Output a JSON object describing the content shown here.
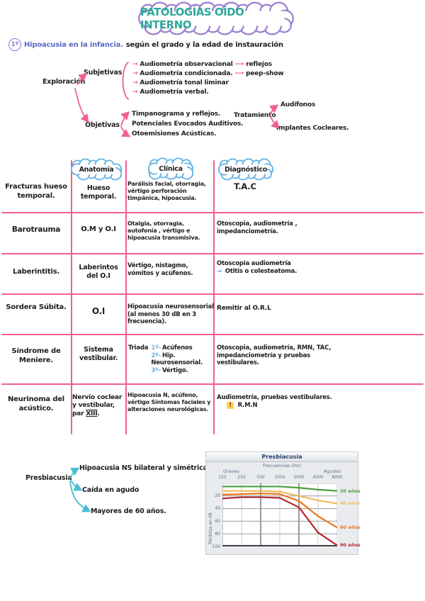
{
  "page_title": "PATOLOGÍAS OÍDO INTERNO",
  "colors": {
    "title_teal": "#2fa89b",
    "cloud_purple": "#9b7ed0",
    "cloud_blue": "#5fb0e5",
    "table_pink": "#f25f8d",
    "heading_blue": "#5b67c7",
    "cyan_arrow": "#49bdd3",
    "warning_yellow": "#f8d44c"
  },
  "section1": {
    "number": "1º",
    "heading_blue": "Hipoacusia en la infancia.",
    "heading_black": "según el grado y la edad de instauración",
    "exploracion_label": "Exploración",
    "subjetivas_label": "Subjetivas",
    "subjetivas_items": [
      {
        "text": "Audiometría observacional",
        "target": "reflejos"
      },
      {
        "text": "Audiometría condicionada.",
        "target": "peep-show"
      },
      {
        "text": "Audiometría tonal liminar",
        "target": ""
      },
      {
        "text": "Audiometría verbal.",
        "target": ""
      }
    ],
    "objetivas_label": "Objetivas",
    "objetivas_items": [
      "Timpanograma y reflejos.",
      "Potenciales Evocados Auditivos.",
      "Otoemisiones Acústicas."
    ],
    "tratamiento_label": "Tratamiento",
    "tratamiento_items": [
      "Audífonos",
      "Implantes Cocleares."
    ]
  },
  "table": {
    "headers": [
      "Anatomía",
      "Clínica",
      "Diagnóstico"
    ],
    "rows": [
      {
        "name": "Fracturas hueso temporal.",
        "anatomia": "Hueso temporal.",
        "clinica": "Parálisis facial, otorragia, vértigo perforación timpánica, hipoacusia.",
        "diagnostico": "T.A.C"
      },
      {
        "name": "Barotrauma",
        "anatomia": "O.M y O.I",
        "clinica": "Otalgia, otorragia, autofonía , vértigo e hipoacusia transmisiva.",
        "diagnostico": "Otoscopia, audiometría , impedanciometría."
      },
      {
        "name": "Laberintitis.",
        "anatomia": "Laberintos del O.I",
        "clinica": "Vértigo, nistagmo, vómitos y acúfenos.",
        "diagnostico": "Otoscopia audiometría",
        "diagnostico_arrow_note": "Otitis o colesteatoma."
      },
      {
        "name": "Sordera Súbita.",
        "anatomia": "O.I",
        "clinica": "Hipoacusia neurosensorial (al menos 30 dB en 3 frecuencia).",
        "diagnostico": "Remitir al O.R.L"
      },
      {
        "name": "Síndrome de Meniere.",
        "anatomia": "Sistema vestibular.",
        "triada_label": "Triada",
        "triada": [
          {
            "num": "1º-",
            "text": "Acúfenos"
          },
          {
            "num": "2º-",
            "text": "Hip. Neurosensorial."
          },
          {
            "num": "3º-",
            "text": "Vértigo."
          }
        ],
        "diagnostico": "Otoscopia, audiometría, RMN, TAC, impedanciometría y pruebas vestibulares."
      },
      {
        "name": "Neurinoma del acústico.",
        "anatomia_pre": "Nervio coclear y vestibular, par ",
        "anatomia_par": "XIII",
        "anatomia_post": ".",
        "clinica": "Hipoacusia N, acúfeno, vértigo Síntomas faciales y alteraciones neurológicas.",
        "diagnostico": "Audiometría, pruebas vestibulares.",
        "diagnostico_warning": "R.M.N"
      }
    ]
  },
  "presbiacusia": {
    "label": "Presbiacusia",
    "items": [
      "Hipoacusia NS bilateral y simétrica",
      "Caída en agudo",
      "Mayores de 60 años."
    ]
  },
  "chart_data": {
    "type": "line",
    "title": "Presbiacusia",
    "xlabel": "Frecuencias (Hz)",
    "xlabel_left": "Graves",
    "xlabel_right": "Agudos",
    "ylabel": "Pérdidas en dB",
    "x_ticks": [
      "125",
      "250",
      "500",
      "1000",
      "2000",
      "4000",
      "8000"
    ],
    "y_ticks": [
      20,
      40,
      60,
      80,
      100
    ],
    "ylim": [
      0,
      100
    ],
    "y_inverted": true,
    "x_scale": "octaves-equally-spaced",
    "grid": true,
    "legend_position": "right",
    "series": [
      {
        "name": "20 años",
        "color": "#4b9e3e",
        "values": [
          5,
          5,
          5,
          5,
          7,
          10,
          12
        ]
      },
      {
        "name": "40 años",
        "color": "#f2b95c",
        "values": [
          12,
          12,
          12,
          13,
          20,
          27,
          32
        ]
      },
      {
        "name": "60 años",
        "color": "#e8771d",
        "values": [
          18,
          17,
          16,
          17,
          28,
          52,
          70
        ]
      },
      {
        "name": "90 años",
        "color": "#b4262e",
        "values": [
          24,
          22,
          22,
          23,
          38,
          78,
          100
        ]
      }
    ]
  }
}
